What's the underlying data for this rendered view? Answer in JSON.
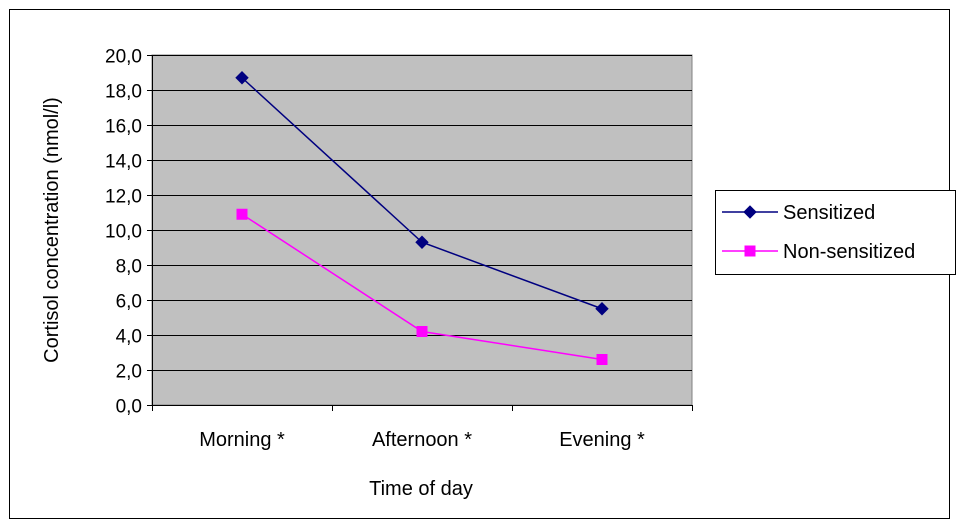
{
  "chart_data": {
    "type": "line",
    "categories": [
      "Morning *",
      "Afternoon *",
      "Evening *"
    ],
    "series": [
      {
        "name": "Sensitized",
        "values": [
          18.7,
          9.3,
          5.5
        ],
        "color": "#000080",
        "marker": "diamond"
      },
      {
        "name": "Non-sensitized",
        "values": [
          10.9,
          4.2,
          2.6
        ],
        "color": "#FF00FF",
        "marker": "square"
      }
    ],
    "title": "",
    "xlabel": "Time of day",
    "ylabel": "Cortisol concentration (nmol/l)",
    "ylim": [
      0,
      20
    ],
    "ytick_labels": [
      "0,0",
      "2,0",
      "4,0",
      "6,0",
      "8,0",
      "10,0",
      "12,0",
      "14,0",
      "16,0",
      "18,0",
      "20,0"
    ],
    "grid": true,
    "plot_background": "#C0C0C0",
    "legend_position": "right"
  }
}
